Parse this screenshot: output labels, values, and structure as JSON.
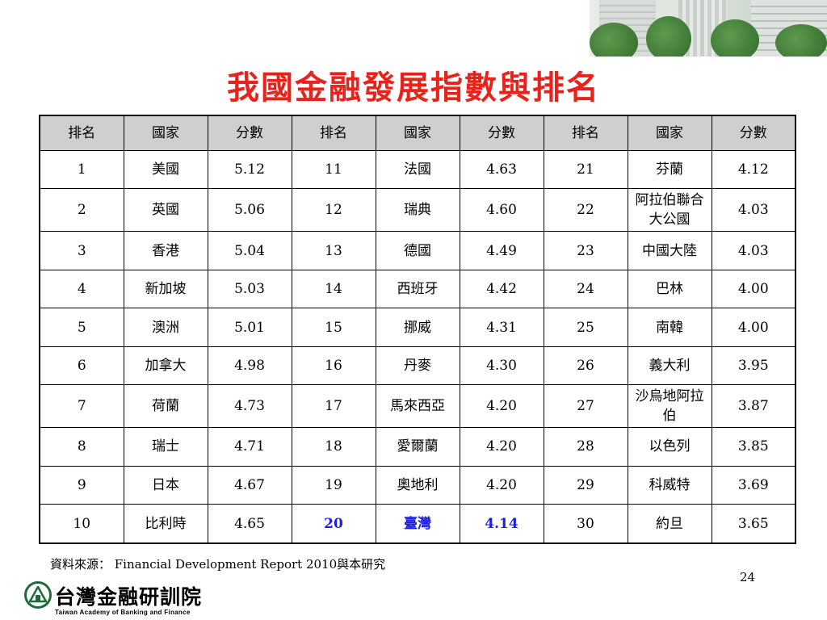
{
  "title": "我國金融發展指數與排名",
  "table": {
    "headers": [
      "排名",
      "國家",
      "分數",
      "排名",
      "國家",
      "分數",
      "排名",
      "國家",
      "分數"
    ],
    "rows": [
      [
        "1",
        "美國",
        "5.12",
        "11",
        "法國",
        "4.63",
        "21",
        "芬蘭",
        "4.12"
      ],
      [
        "2",
        "英國",
        "5.06",
        "12",
        "瑞典",
        "4.60",
        "22",
        "阿拉伯聯合大公國",
        "4.03"
      ],
      [
        "3",
        "香港",
        "5.04",
        "13",
        "德國",
        "4.49",
        "23",
        "中國大陸",
        "4.03"
      ],
      [
        "4",
        "新加坡",
        "5.03",
        "14",
        "西班牙",
        "4.42",
        "24",
        "巴林",
        "4.00"
      ],
      [
        "5",
        "澳洲",
        "5.01",
        "15",
        "挪威",
        "4.31",
        "25",
        "南韓",
        "4.00"
      ],
      [
        "6",
        "加拿大",
        "4.98",
        "16",
        "丹麥",
        "4.30",
        "26",
        "義大利",
        "3.95"
      ],
      [
        "7",
        "荷蘭",
        "4.73",
        "17",
        "馬來西亞",
        "4.20",
        "27",
        "沙烏地阿拉伯",
        "3.87"
      ],
      [
        "8",
        "瑞士",
        "4.71",
        "18",
        "愛爾蘭",
        "4.20",
        "28",
        "以色列",
        "3.85"
      ],
      [
        "9",
        "日本",
        "4.67",
        "19",
        "奧地利",
        "4.20",
        "29",
        "科威特",
        "3.69"
      ],
      [
        "10",
        "比利時",
        "4.65",
        "20",
        "臺灣",
        "4.14",
        "30",
        "約旦",
        "3.65"
      ]
    ],
    "highlight_color": "#1f1fe0"
  },
  "source": "資料來源： Financial Development Report 2010與本研究",
  "page_number": "24",
  "logo": {
    "name_cn": "台灣金融研訓院",
    "name_en": "Taiwan Academy of Banking and Finance"
  },
  "colors": {
    "title": "#e8231b",
    "header_bg": "#cfcfcf",
    "logo_green": "#1e6b3a"
  }
}
